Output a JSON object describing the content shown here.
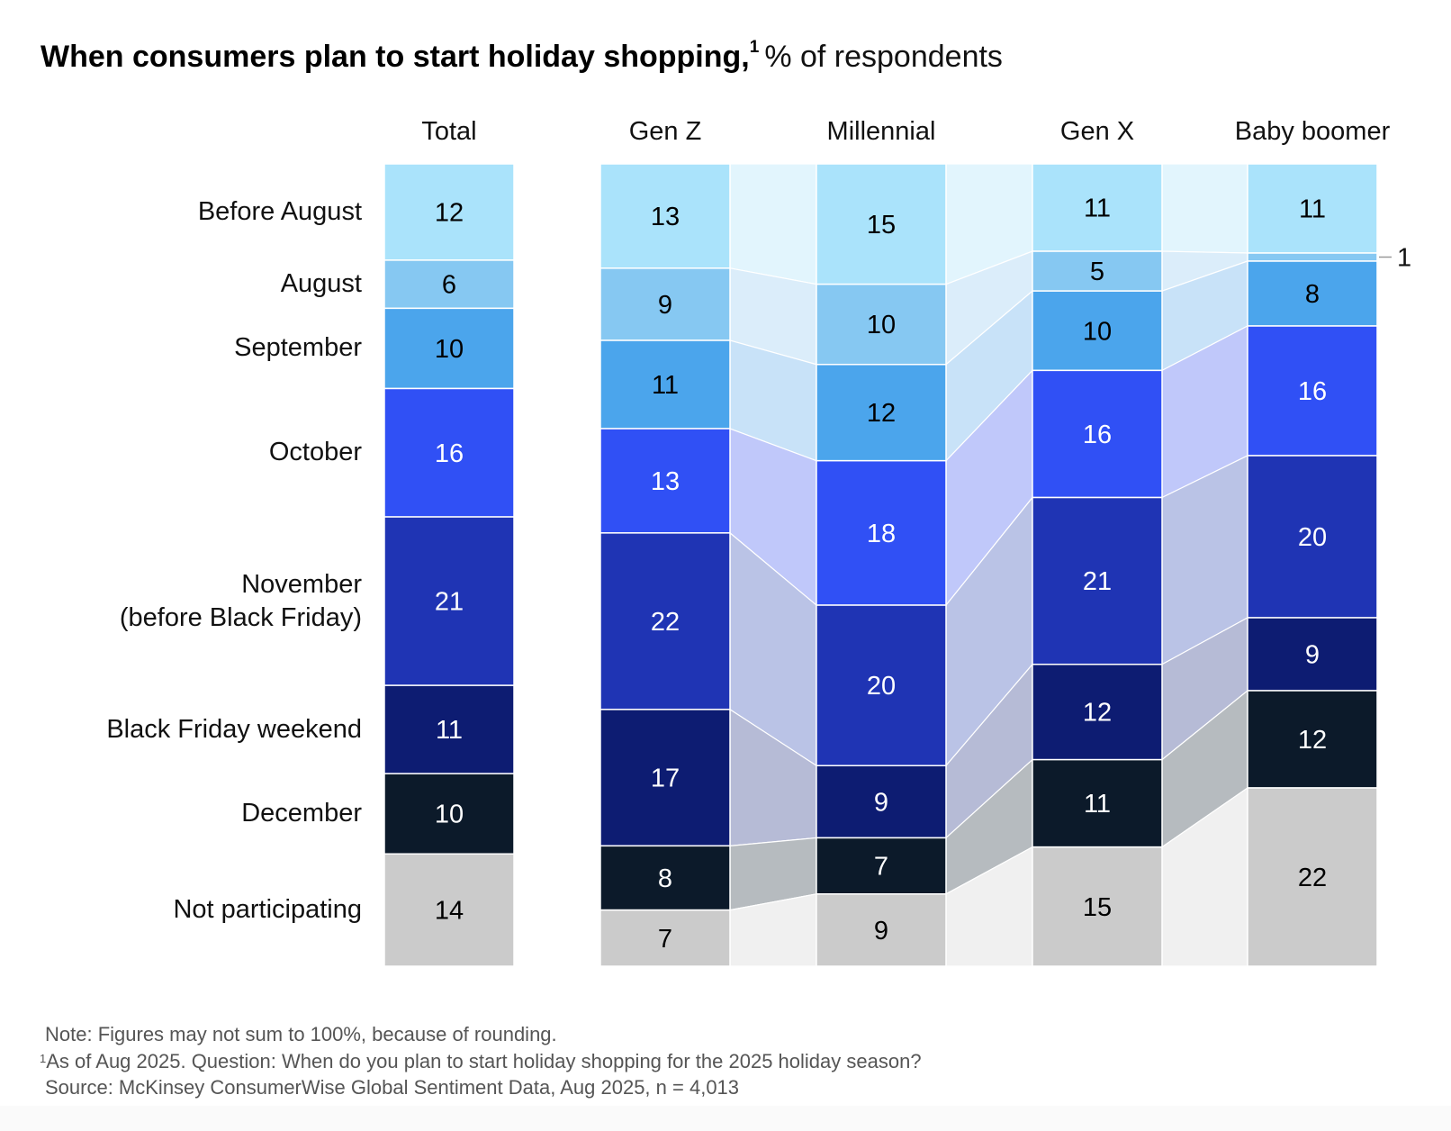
{
  "title": {
    "bold": "When consumers plan to start holiday shopping,",
    "footnote_mark": "1",
    "subtitle": "% of respondents"
  },
  "footer": {
    "note": "Note: Figures may not sum to 100%, because of rounding.",
    "footnote_mark": "1",
    "footnote": "As of Aug 2025. Question: When do you plan to start holiday shopping for the 2025 holiday season?",
    "source": "Source: McKinsey ConsumerWise Global Sentiment Data, Aug 2025, n = 4,013"
  },
  "colors": {
    "segments": [
      "#aae3fb",
      "#86c8f2",
      "#4ba5ec",
      "#3050f5",
      "#1f34b4",
      "#0d1c72",
      "#0c1a2a",
      "#cbcbcb"
    ],
    "bands": [
      "#e2f5fd",
      "#dbedfa",
      "#c8e2f8",
      "#c0c8fa",
      "#bac3e6",
      "#b6bbd6",
      "#b6bbbf",
      "#f0f0f0"
    ],
    "label_dark": "#000000",
    "label_light": "#ffffff"
  },
  "chart_data": {
    "type": "bar",
    "stacked": true,
    "title": "When consumers plan to start holiday shopping, % of respondents",
    "categories": [
      "Before August",
      "August",
      "September",
      "October",
      "November\n(before Black Friday)",
      "Black Friday weekend",
      "December",
      "Not participating"
    ],
    "category_labels": [
      [
        "Before August"
      ],
      [
        "August"
      ],
      [
        "September"
      ],
      [
        "October"
      ],
      [
        "November",
        "(before Black Friday)"
      ],
      [
        "Black Friday weekend"
      ],
      [
        "December"
      ],
      [
        "Not participating"
      ]
    ],
    "series": [
      {
        "name": "Total",
        "values": [
          12,
          6,
          10,
          16,
          21,
          11,
          10,
          14
        ]
      },
      {
        "name": "Gen Z",
        "values": [
          13,
          9,
          11,
          13,
          22,
          17,
          8,
          7
        ]
      },
      {
        "name": "Millennial",
        "values": [
          15,
          10,
          12,
          18,
          20,
          9,
          7,
          9
        ]
      },
      {
        "name": "Gen X",
        "values": [
          11,
          5,
          10,
          16,
          21,
          12,
          11,
          15
        ]
      },
      {
        "name": "Baby boomer",
        "values": [
          11,
          1,
          8,
          16,
          20,
          9,
          12,
          22
        ]
      }
    ],
    "callouts": [
      {
        "series": "Baby boomer",
        "category": "August",
        "text": "1"
      }
    ],
    "connected_series": [
      "Gen Z",
      "Millennial",
      "Gen X",
      "Baby boomer"
    ],
    "xlabel": "",
    "ylabel": "% of respondents",
    "ylim": [
      0,
      100
    ],
    "legend": "none",
    "grid": false
  }
}
